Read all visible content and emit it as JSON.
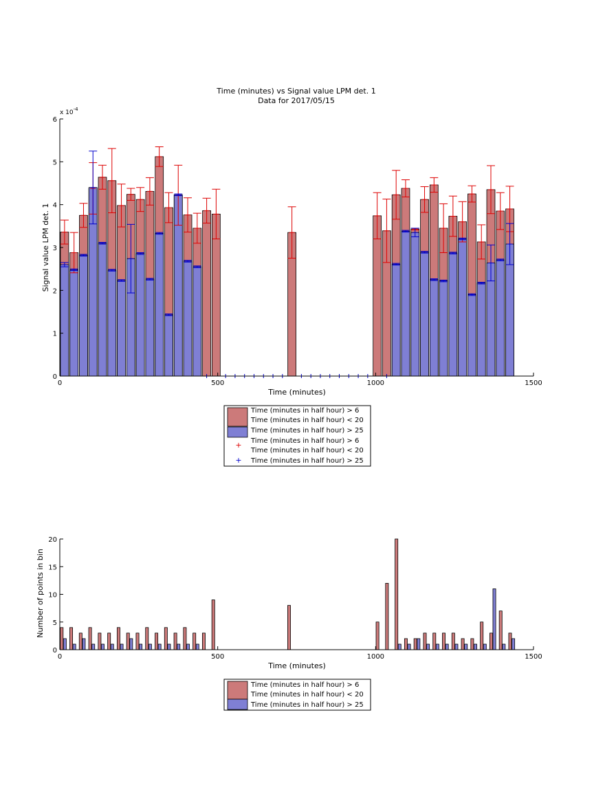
{
  "colors": {
    "red_fill": "#cc7a7a",
    "blue_fill": "#7f7fd4",
    "red_error": "#dd0000",
    "blue_error": "#0000cc",
    "axis": "#000000"
  },
  "chart_data": [
    {
      "type": "bar",
      "title": "Time (minutes) vs Signal value LPM det. 1",
      "subtitle": "Data for 2017/05/15",
      "xlabel": "Time (minutes)",
      "ylabel": "Signal value LPM det. 1",
      "y_exponent_label": "x 10^-4",
      "y_scale_note": "values in units of 1e-4",
      "xlim": [
        0,
        1500
      ],
      "ylim": [
        0,
        6
      ],
      "xticks": [
        "0",
        "500",
        "1000",
        "1500"
      ],
      "yticks": [
        "0",
        "1",
        "2",
        "3",
        "4",
        "5",
        "6"
      ],
      "legend_position": "below",
      "legend": [
        {
          "label": "Time (minutes in half hour) > 6",
          "kind": "patch",
          "color": "red"
        },
        {
          "label": "Time (minutes in half hour) < 20",
          "kind": "patch",
          "color": "red"
        },
        {
          "label": "Time (minutes in half hour) > 25",
          "kind": "patch",
          "color": "blue"
        },
        {
          "label": "Time (minutes in half hour) > 6",
          "kind": "none",
          "color": "red"
        },
        {
          "label": "Time (minutes in half hour) < 20",
          "kind": "marker",
          "color": "red"
        },
        {
          "label": "Time (minutes in half hour) > 25",
          "kind": "marker",
          "color": "blue"
        }
      ],
      "series": [
        {
          "name": "Time (minutes in half hour) > 6 / < 20",
          "x": [
            15,
            45,
            75,
            105,
            135,
            165,
            195,
            225,
            255,
            285,
            315,
            345,
            375,
            405,
            435,
            465,
            495,
            735,
            1005,
            1035,
            1065,
            1095,
            1125,
            1155,
            1185,
            1215,
            1245,
            1275,
            1305,
            1335,
            1365,
            1395,
            1425
          ],
          "values": [
            3.36,
            2.88,
            3.75,
            4.38,
            4.64,
            4.56,
            3.98,
            4.24,
            4.12,
            4.31,
            5.12,
            3.93,
            4.22,
            3.76,
            3.45,
            3.86,
            3.78,
            3.35,
            3.74,
            3.39,
            4.23,
            4.38,
            3.43,
            4.12,
            4.46,
            3.45,
            3.73,
            3.6,
            4.25,
            3.13,
            4.35,
            3.85,
            3.9
          ],
          "err": [
            0.28,
            0.47,
            0.28,
            0.6,
            0.28,
            0.75,
            0.5,
            0.14,
            0.28,
            0.32,
            0.23,
            0.35,
            0.7,
            0.4,
            0.35,
            0.29,
            0.58,
            0.6,
            0.54,
            0.74,
            0.57,
            0.2,
            0.02,
            0.3,
            0.17,
            0.57,
            0.47,
            0.47,
            0.19,
            0.4,
            0.56,
            0.43,
            0.53
          ]
        },
        {
          "name": "Time (minutes in half hour) > 25",
          "x": [
            15,
            45,
            75,
            105,
            135,
            165,
            195,
            225,
            255,
            285,
            315,
            345,
            375,
            405,
            435,
            1065,
            1095,
            1125,
            1155,
            1185,
            1215,
            1245,
            1275,
            1305,
            1335,
            1365,
            1395,
            1425
          ],
          "values": [
            2.6,
            2.48,
            2.82,
            4.4,
            3.1,
            2.47,
            2.23,
            2.74,
            2.86,
            2.26,
            3.33,
            1.43,
            4.23,
            2.68,
            2.55,
            2.61,
            3.38,
            3.35,
            2.89,
            2.25,
            2.22,
            2.87,
            3.2,
            1.9,
            2.17,
            2.64,
            2.71,
            3.08
          ],
          "err": [
            0.05,
            0.02,
            0.02,
            0.85,
            0.02,
            0.02,
            0.02,
            0.8,
            0.02,
            0.02,
            0.02,
            0.02,
            0.02,
            0.02,
            0.02,
            0.02,
            0.02,
            0.1,
            0.02,
            0.02,
            0.02,
            0.02,
            0.02,
            0.02,
            0.02,
            0.42,
            0.02,
            0.48
          ]
        },
        {
          "name": "empty-bin markers",
          "x": [
            465,
            525,
            555,
            585,
            615,
            645,
            675,
            705,
            765,
            795,
            825,
            855,
            885,
            915,
            945,
            975,
            1035
          ],
          "values": [
            0,
            0,
            0,
            0,
            0,
            0,
            0,
            0,
            0,
            0,
            0,
            0,
            0,
            0,
            0,
            0,
            0
          ]
        }
      ]
    },
    {
      "type": "bar",
      "xlabel": "Time (minutes)",
      "ylabel": "Number of points in bin",
      "xlim": [
        0,
        1500
      ],
      "ylim": [
        0,
        20
      ],
      "xticks": [
        "0",
        "500",
        "1000",
        "1500"
      ],
      "yticks": [
        "0",
        "5",
        "10",
        "15",
        "20"
      ],
      "legend_position": "below",
      "legend": [
        {
          "label": "Time (minutes in half hour) > 6",
          "color": "red"
        },
        {
          "label": "Time (minutes in half hour) < 20",
          "color": "red"
        },
        {
          "label": "Time (minutes in half hour) > 25",
          "color": "blue"
        }
      ],
      "series": [
        {
          "name": "Time (minutes in half hour) > 6 / < 20",
          "x": [
            6,
            36,
            66,
            96,
            126,
            156,
            186,
            216,
            246,
            276,
            306,
            336,
            366,
            396,
            426,
            456,
            486,
            726,
            1006,
            1036,
            1066,
            1096,
            1126,
            1156,
            1186,
            1216,
            1246,
            1276,
            1306,
            1336,
            1366,
            1396,
            1426
          ],
          "values": [
            4,
            4,
            3,
            4,
            3,
            3,
            4,
            3,
            3,
            4,
            3,
            4,
            3,
            4,
            3,
            3,
            9,
            8,
            5,
            12,
            20,
            2,
            2,
            3,
            3,
            3,
            3,
            2,
            2,
            5,
            3,
            7,
            3
          ]
        },
        {
          "name": "Time (minutes in half hour) > 25",
          "x": [
            16,
            46,
            76,
            106,
            136,
            166,
            196,
            226,
            256,
            286,
            316,
            346,
            376,
            406,
            436,
            1076,
            1106,
            1136,
            1166,
            1196,
            1226,
            1256,
            1286,
            1316,
            1346,
            1376,
            1406,
            1436
          ],
          "values": [
            2,
            1,
            2,
            1,
            1,
            1,
            1,
            2,
            1,
            1,
            1,
            1,
            1,
            1,
            1,
            1,
            1,
            2,
            1,
            1,
            1,
            1,
            1,
            1,
            1,
            11,
            1,
            2
          ]
        }
      ]
    }
  ]
}
